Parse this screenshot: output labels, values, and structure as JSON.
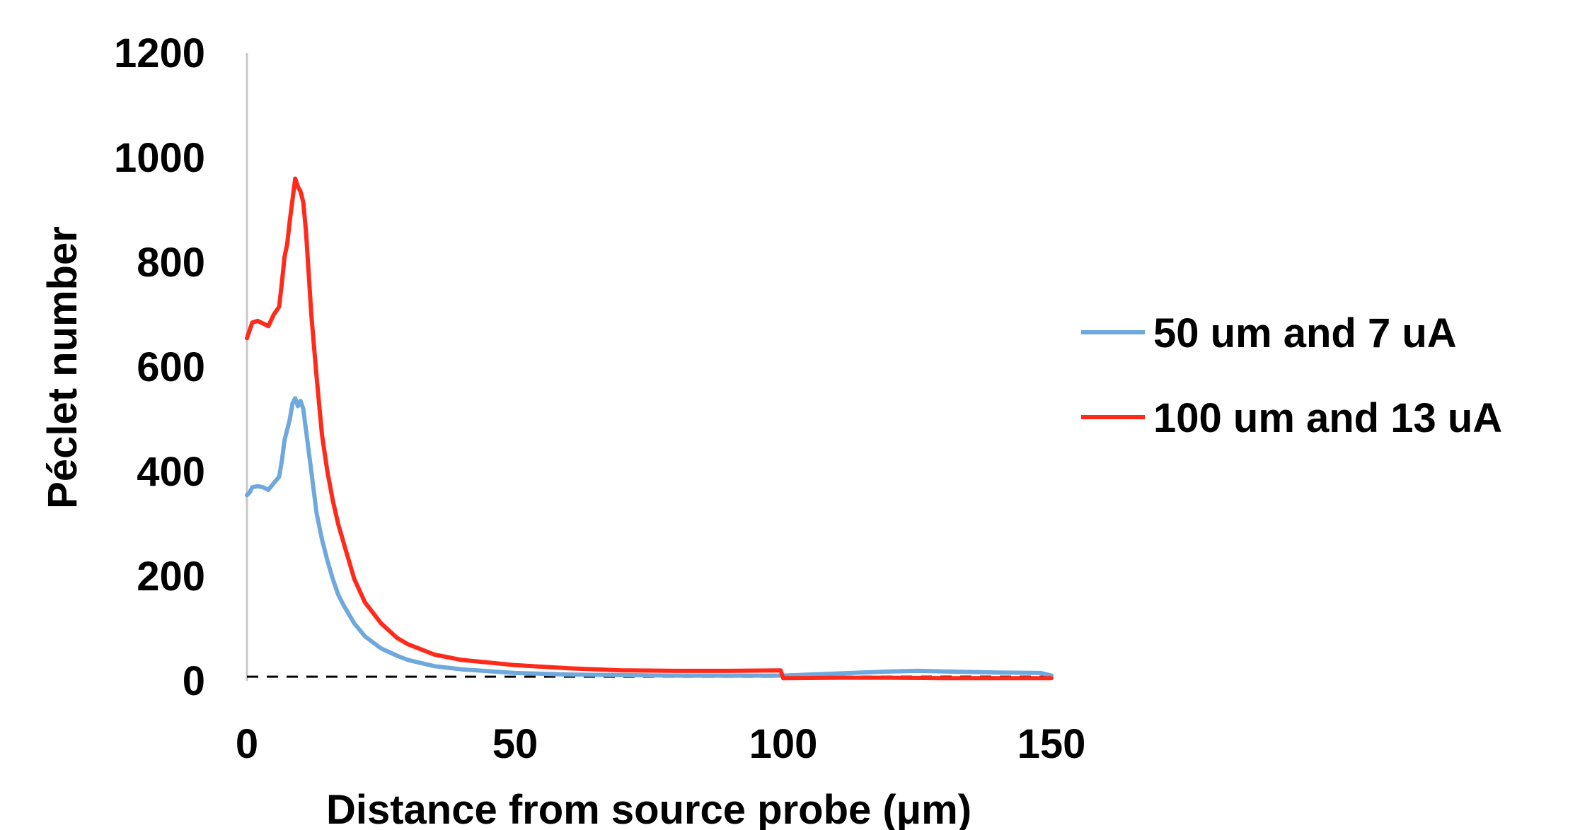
{
  "chart_data": {
    "type": "line",
    "title": "",
    "xlabel": "Distance from source probe (μm)",
    "ylabel": "Péclet number",
    "xlim": [
      0,
      150
    ],
    "ylim": [
      0,
      1200
    ],
    "x_ticks": [
      0,
      50,
      100,
      150
    ],
    "y_ticks": [
      0,
      200,
      400,
      600,
      800,
      1000,
      1200
    ],
    "grid": false,
    "legend_position": "right",
    "reference_line": {
      "y": 8,
      "style": "dashed",
      "color": "#000000"
    },
    "series": [
      {
        "name": "50 um and 7 uA",
        "color": "#6fa8dc",
        "points": [
          [
            0,
            355
          ],
          [
            0.5,
            360
          ],
          [
            1,
            370
          ],
          [
            2,
            372
          ],
          [
            3,
            370
          ],
          [
            4,
            365
          ],
          [
            5,
            378
          ],
          [
            6,
            390
          ],
          [
            6.5,
            420
          ],
          [
            7,
            460
          ],
          [
            7.5,
            480
          ],
          [
            8,
            500
          ],
          [
            8.5,
            530
          ],
          [
            9,
            540
          ],
          [
            9.5,
            525
          ],
          [
            10,
            535
          ],
          [
            10.5,
            520
          ],
          [
            11,
            480
          ],
          [
            12,
            400
          ],
          [
            13,
            320
          ],
          [
            14,
            270
          ],
          [
            15,
            230
          ],
          [
            16,
            195
          ],
          [
            17,
            165
          ],
          [
            18,
            145
          ],
          [
            20,
            110
          ],
          [
            22,
            85
          ],
          [
            25,
            62
          ],
          [
            28,
            48
          ],
          [
            30,
            40
          ],
          [
            35,
            28
          ],
          [
            40,
            22
          ],
          [
            50,
            15
          ],
          [
            60,
            12
          ],
          [
            70,
            11
          ],
          [
            80,
            10
          ],
          [
            90,
            10
          ],
          [
            100,
            10
          ],
          [
            110,
            14
          ],
          [
            120,
            18
          ],
          [
            125,
            19
          ],
          [
            130,
            18
          ],
          [
            140,
            16
          ],
          [
            148,
            15
          ],
          [
            150,
            10
          ]
        ]
      },
      {
        "name": "100 um and 13 uA",
        "color": "#ff2a1a",
        "points": [
          [
            0,
            655
          ],
          [
            0.5,
            670
          ],
          [
            1,
            685
          ],
          [
            2,
            688
          ],
          [
            3,
            683
          ],
          [
            4,
            678
          ],
          [
            5,
            700
          ],
          [
            6,
            715
          ],
          [
            6.5,
            760
          ],
          [
            7,
            810
          ],
          [
            7.5,
            835
          ],
          [
            8,
            880
          ],
          [
            8.5,
            920
          ],
          [
            9,
            960
          ],
          [
            9.5,
            945
          ],
          [
            10,
            935
          ],
          [
            10.5,
            915
          ],
          [
            11,
            860
          ],
          [
            12,
            700
          ],
          [
            13,
            580
          ],
          [
            14,
            470
          ],
          [
            15,
            400
          ],
          [
            16,
            345
          ],
          [
            17,
            300
          ],
          [
            18,
            265
          ],
          [
            20,
            195
          ],
          [
            22,
            150
          ],
          [
            25,
            110
          ],
          [
            28,
            82
          ],
          [
            30,
            70
          ],
          [
            35,
            50
          ],
          [
            40,
            40
          ],
          [
            50,
            30
          ],
          [
            60,
            24
          ],
          [
            70,
            20
          ],
          [
            80,
            19
          ],
          [
            90,
            19
          ],
          [
            99.5,
            20
          ],
          [
            100,
            5
          ],
          [
            110,
            6
          ],
          [
            120,
            6
          ],
          [
            130,
            5
          ],
          [
            140,
            5
          ],
          [
            150,
            5
          ]
        ]
      }
    ]
  }
}
